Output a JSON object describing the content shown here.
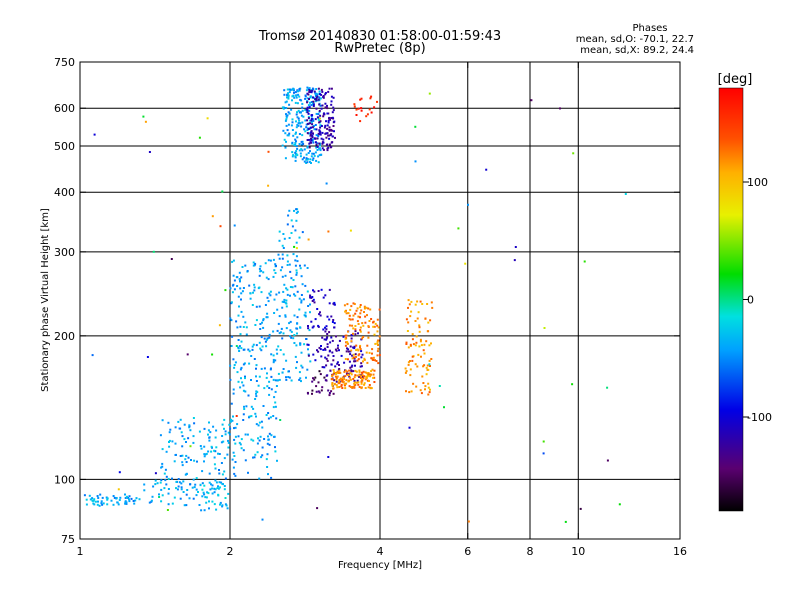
{
  "chart_data": {
    "type": "scatter",
    "title": "Tromsø 20140830 01:58:00-01:59:43",
    "subtitle": "RwPretec (8p)",
    "xlabel": "Frequency [MHz]",
    "ylabel": "Stationary phase Virtual Height [km]",
    "x_scale": "log",
    "y_scale": "log",
    "xlim": [
      1,
      16
    ],
    "ylim": [
      75,
      750
    ],
    "x_ticks": [
      1,
      2,
      4,
      6,
      8,
      10,
      16
    ],
    "y_ticks": [
      75,
      100,
      200,
      300,
      400,
      500,
      600,
      750
    ],
    "grid_x": [
      2,
      4,
      6,
      8,
      10
    ],
    "grid_y": [
      100,
      200,
      300,
      400,
      500,
      600
    ],
    "info": {
      "heading": "Phases",
      "line1": "mean, sd,O: -70.1, 22.7",
      "line2": "mean, sd,X:  89.2, 24.4"
    },
    "colorbar": {
      "label": "[deg]",
      "range": [
        -180,
        180
      ],
      "ticks": [
        100,
        0,
        -100
      ],
      "palette": "rainbow (black → purple → blue → cyan → green → yellow → orange → red)"
    },
    "point_groups": [
      {
        "x": [
          1.0,
          1.3
        ],
        "y": [
          88,
          93
        ],
        "n": 60,
        "phase": -40
      },
      {
        "x": [
          1.3,
          1.75
        ],
        "y": [
          88,
          100
        ],
        "n": 40,
        "phase": -40
      },
      {
        "x": [
          1.45,
          2.0
        ],
        "y": [
          95,
          135
        ],
        "n": 140,
        "phase": -40
      },
      {
        "x": [
          1.75,
          2.0
        ],
        "y": [
          86,
          100
        ],
        "n": 40,
        "phase": -30
      },
      {
        "x": [
          2.0,
          2.5
        ],
        "y": [
          100,
          160
        ],
        "n": 110,
        "phase": -40
      },
      {
        "x": [
          2.0,
          2.9
        ],
        "y": [
          160,
          290
        ],
        "n": 300,
        "phase": -40
      },
      {
        "x": [
          2.5,
          2.8
        ],
        "y": [
          290,
          370
        ],
        "n": 30,
        "phase": -40
      },
      {
        "x": [
          2.55,
          3.05
        ],
        "y": [
          460,
          665
        ],
        "n": 260,
        "phase": -40
      },
      {
        "x": [
          2.85,
          3.25
        ],
        "y": [
          490,
          660
        ],
        "n": 170,
        "phase": -120
      },
      {
        "x": [
          2.85,
          3.25
        ],
        "y": [
          170,
          250
        ],
        "n": 70,
        "phase": -110
      },
      {
        "x": [
          2.85,
          3.25
        ],
        "y": [
          150,
          170
        ],
        "n": 25,
        "phase": -150
      },
      {
        "x": [
          3.1,
          3.7
        ],
        "y": [
          160,
          205
        ],
        "n": 90,
        "phase": -120
      },
      {
        "x": [
          3.2,
          3.9
        ],
        "y": [
          155,
          170
        ],
        "n": 140,
        "phase": 120
      },
      {
        "x": [
          3.4,
          4.0
        ],
        "y": [
          175,
          235
        ],
        "n": 120,
        "phase": 120
      },
      {
        "x": [
          4.5,
          5.1
        ],
        "y": [
          150,
          240
        ],
        "n": 90,
        "phase": 115
      },
      {
        "x": [
          3.55,
          3.95
        ],
        "y": [
          560,
          650
        ],
        "n": 18,
        "phase": 160
      },
      {
        "x": [
          1.0,
          12.5
        ],
        "y": [
          80,
          650
        ],
        "n": 70,
        "phase": 0
      }
    ]
  }
}
